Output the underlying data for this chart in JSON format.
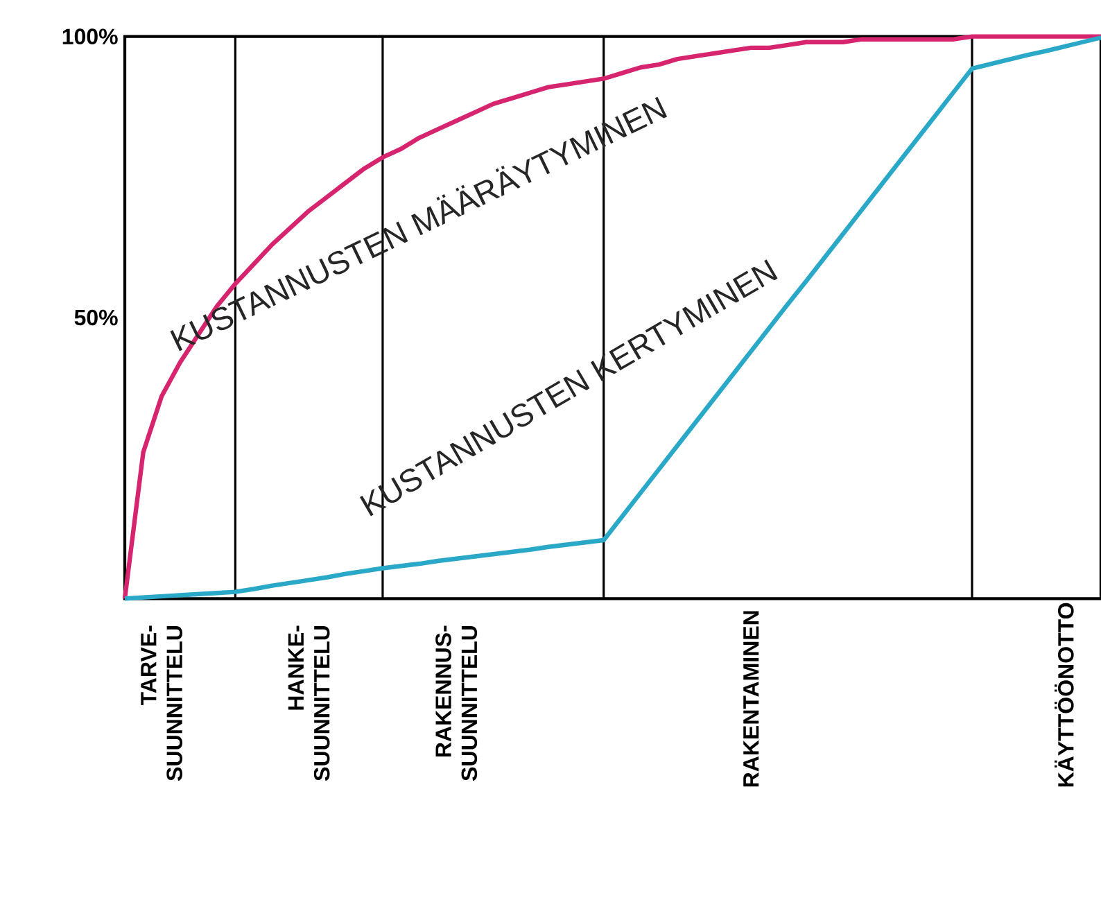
{
  "chart_data": {
    "type": "line",
    "categories": [
      null,
      null,
      "TARVE- SUUNNITTELU",
      null,
      null,
      null,
      null,
      null,
      null,
      null,
      "HANKE- SUUNNITTELU",
      null,
      null,
      null,
      null,
      null,
      null,
      null,
      "RAKENNUS- SUUNNITTELU",
      null,
      null,
      null,
      null,
      null,
      null,
      null,
      null,
      null,
      null,
      null,
      null,
      null,
      null,
      null,
      "RAKENTAMINEN",
      null,
      null,
      null,
      null,
      null,
      null,
      null,
      null,
      null,
      null,
      null,
      null,
      null,
      null,
      null,
      null,
      "KÄYTTÖÖNOTTO",
      null,
      null
    ],
    "ylim": [
      0,
      100
    ],
    "yticks": [
      {
        "value": 50,
        "label": "50%"
      },
      {
        "value": 100,
        "label": "100%"
      }
    ],
    "grid": "x",
    "legend": false,
    "marker": "none",
    "line_style": "solid",
    "series": [
      {
        "name": "KUSTANNUSTEN MÄÄRÄYTYMINEN",
        "color": "#d6246e",
        "values": [
          0,
          26,
          36,
          42,
          47,
          52,
          56,
          59.5,
          63,
          66,
          69,
          71.5,
          74,
          76.5,
          78.5,
          80,
          82,
          83.5,
          85,
          86.5,
          88,
          89,
          90,
          91,
          91.5,
          92,
          92.5,
          93.5,
          94.5,
          95,
          96,
          96.5,
          97,
          97.5,
          98,
          98,
          98.5,
          99,
          99,
          99,
          99.5,
          99.5,
          99.5,
          99.5,
          99.5,
          99.5,
          100,
          100,
          100,
          100,
          100,
          100,
          100,
          100
        ]
      },
      {
        "name": "KUSTANNUSTEN KERTYMINEN",
        "color": "#2aa8c8",
        "values": [
          0,
          0.2,
          0.4,
          0.6,
          0.8,
          1,
          1.2,
          1.7,
          2.3,
          2.8,
          3.3,
          3.8,
          4.4,
          4.9,
          5.4,
          5.8,
          6.2,
          6.7,
          7.1,
          7.5,
          7.9,
          8.3,
          8.7,
          9.2,
          9.6,
          10,
          10.4,
          14.6,
          18.8,
          23,
          27.2,
          31.4,
          35.6,
          39.8,
          44,
          48.2,
          52.4,
          56.5,
          60.7,
          64.9,
          69.1,
          73.3,
          77.5,
          81.7,
          85.9,
          90.1,
          94.3,
          95.1,
          95.9,
          96.7,
          97.4,
          98.2,
          99,
          99.8
        ]
      }
    ]
  }
}
